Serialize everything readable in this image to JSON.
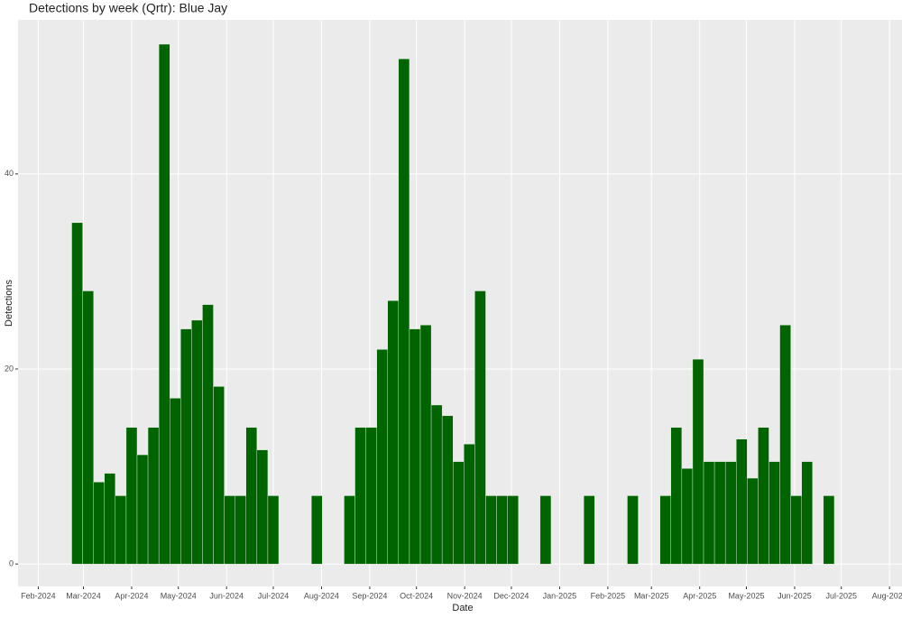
{
  "chart_data": {
    "type": "bar",
    "title": "Detections by week (Qrtr): Blue Jay",
    "x_label": "Date",
    "y_label": "Detections",
    "x": [
      "2024-02-26",
      "2024-03-04",
      "2024-03-11",
      "2024-03-18",
      "2024-03-25",
      "2024-04-01",
      "2024-04-08",
      "2024-04-15",
      "2024-04-22",
      "2024-04-29",
      "2024-05-06",
      "2024-05-13",
      "2024-05-20",
      "2024-05-27",
      "2024-06-03",
      "2024-06-10",
      "2024-06-17",
      "2024-06-24",
      "2024-07-01",
      "2024-07-29",
      "2024-08-19",
      "2024-08-26",
      "2024-09-02",
      "2024-09-09",
      "2024-09-16",
      "2024-09-23",
      "2024-09-30",
      "2024-10-07",
      "2024-10-14",
      "2024-10-21",
      "2024-10-28",
      "2024-11-04",
      "2024-11-11",
      "2024-11-18",
      "2024-11-25",
      "2024-12-02",
      "2024-12-23",
      "2025-01-20",
      "2025-02-17",
      "2025-03-10",
      "2025-03-17",
      "2025-03-24",
      "2025-03-31",
      "2025-04-07",
      "2025-04-14",
      "2025-04-21",
      "2025-04-28",
      "2025-05-05",
      "2025-05-12",
      "2025-05-19",
      "2025-05-26",
      "2025-06-02",
      "2025-06-09",
      "2025-06-23"
    ],
    "values": [
      35,
      28,
      8.4,
      9.3,
      7,
      14,
      11.2,
      14,
      53.3,
      17,
      24.1,
      25,
      26.6,
      18.2,
      7,
      7,
      14,
      11.7,
      7,
      7,
      7,
      14,
      14,
      22,
      27,
      51.8,
      24.1,
      24.5,
      16.3,
      15.2,
      10.5,
      12.3,
      28,
      7,
      7,
      7,
      7,
      7,
      7,
      7,
      14,
      9.8,
      21,
      10.5,
      10.5,
      10.5,
      12.8,
      8.8,
      14,
      10.5,
      24.5,
      7,
      10.5,
      7
    ],
    "color": "#006400",
    "xlim": [
      "2024-01-19",
      "2025-08-09"
    ],
    "xticks": [
      {
        "value": "2024-02-01",
        "label": "Feb-2024"
      },
      {
        "value": "2024-03-01",
        "label": "Mar-2024"
      },
      {
        "value": "2024-04-01",
        "label": "Apr-2024"
      },
      {
        "value": "2024-05-01",
        "label": "May-2024"
      },
      {
        "value": "2024-06-01",
        "label": "Jun-2024"
      },
      {
        "value": "2024-07-01",
        "label": "Jul-2024"
      },
      {
        "value": "2024-08-01",
        "label": "Aug-2024"
      },
      {
        "value": "2024-09-01",
        "label": "Sep-2024"
      },
      {
        "value": "2024-10-01",
        "label": "Oct-2024"
      },
      {
        "value": "2024-11-01",
        "label": "Nov-2024"
      },
      {
        "value": "2024-12-01",
        "label": "Dec-2024"
      },
      {
        "value": "2025-01-01",
        "label": "Jan-2025"
      },
      {
        "value": "2025-02-01",
        "label": "Feb-2025"
      },
      {
        "value": "2025-03-01",
        "label": "Mar-2025"
      },
      {
        "value": "2025-04-01",
        "label": "Apr-2025"
      },
      {
        "value": "2025-05-01",
        "label": "May-2025"
      },
      {
        "value": "2025-06-01",
        "label": "Jun-2025"
      },
      {
        "value": "2025-07-01",
        "label": "Jul-2025"
      },
      {
        "value": "2025-08-01",
        "label": "Aug-2025"
      }
    ],
    "ylim": [
      -2.3,
      55.8
    ],
    "yticks": [
      0,
      20,
      40
    ],
    "grid": true
  }
}
